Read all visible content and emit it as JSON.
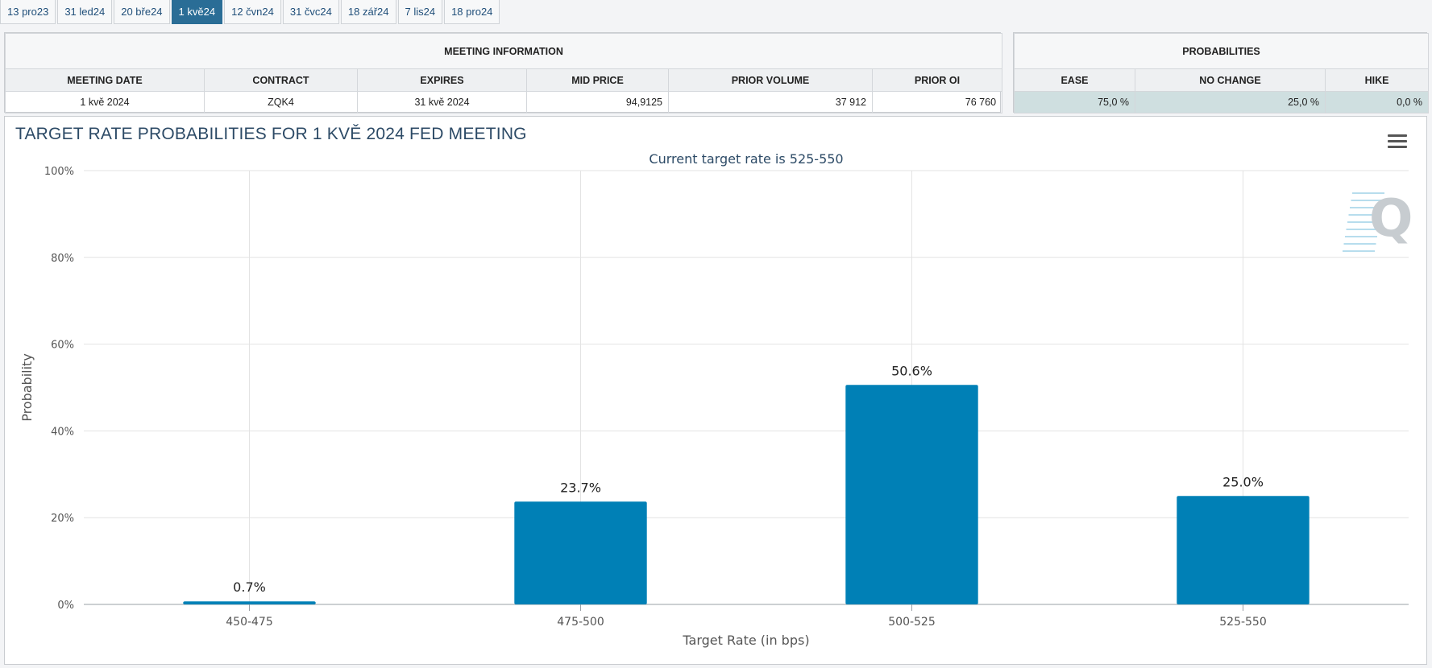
{
  "tabs": [
    {
      "label": "13 pro23",
      "active": false
    },
    {
      "label": "31 led24",
      "active": false
    },
    {
      "label": "20 bře24",
      "active": false
    },
    {
      "label": "1 kvě24",
      "active": true
    },
    {
      "label": "12 čvn24",
      "active": false
    },
    {
      "label": "31 čvc24",
      "active": false
    },
    {
      "label": "18 zář24",
      "active": false
    },
    {
      "label": "7 lis24",
      "active": false
    },
    {
      "label": "18 pro24",
      "active": false
    }
  ],
  "meeting_info": {
    "caption": "MEETING INFORMATION",
    "headers": [
      "MEETING DATE",
      "CONTRACT",
      "EXPIRES",
      "MID PRICE",
      "PRIOR VOLUME",
      "PRIOR OI"
    ],
    "values": [
      "1 kvě 2024",
      "ZQK4",
      "31 kvě 2024",
      "94,9125",
      "37 912",
      "76 760"
    ]
  },
  "probabilities": {
    "caption": "PROBABILITIES",
    "headers": [
      "EASE",
      "NO CHANGE",
      "HIKE"
    ],
    "values": [
      "75,0 %",
      "25,0 %",
      "0,0 %"
    ]
  },
  "chart": {
    "menu_icon": "hamburger-menu-icon",
    "watermark_icon": "q-logo-watermark",
    "bar_color": "#0080b6"
  },
  "chart_data": {
    "type": "bar",
    "title": "TARGET RATE PROBABILITIES FOR 1 KVĚ 2024 FED MEETING",
    "subtitle": "Current target rate is 525-550",
    "xlabel": "Target Rate (in bps)",
    "ylabel": "Probability",
    "categories": [
      "450-475",
      "475-500",
      "500-525",
      "525-550"
    ],
    "values": [
      0.7,
      23.7,
      50.6,
      25.0
    ],
    "data_labels": [
      "0.7%",
      "23.7%",
      "50.6%",
      "25.0%"
    ],
    "ylim": [
      0,
      100
    ],
    "yticks": [
      0,
      20,
      40,
      60,
      80,
      100
    ],
    "ytick_labels": [
      "0%",
      "20%",
      "40%",
      "60%",
      "80%",
      "100%"
    ],
    "grid": true,
    "legend": "none"
  }
}
